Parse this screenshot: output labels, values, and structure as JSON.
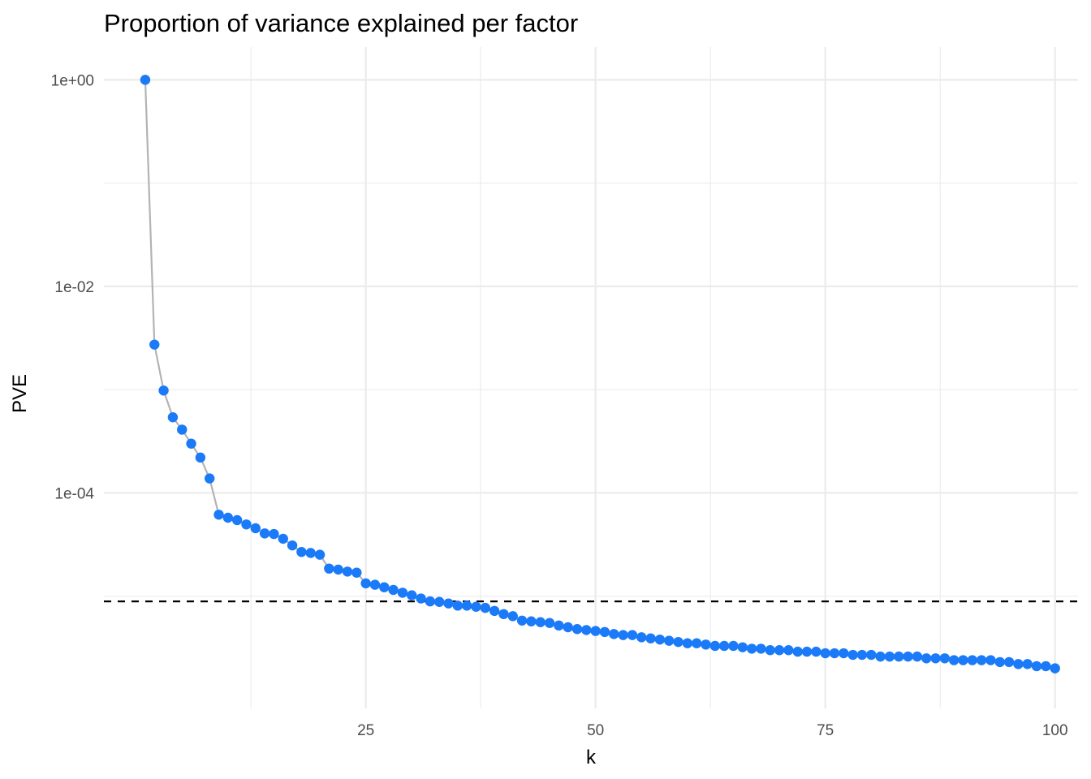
{
  "chart_data": {
    "type": "scatter",
    "title": "Proportion of variance explained per factor",
    "xlabel": "k",
    "ylabel": "PVE",
    "x_ticks": [
      25,
      50,
      75,
      100
    ],
    "x_tick_labels": [
      "25",
      "50",
      "75",
      "100"
    ],
    "y_ticks": [
      1,
      0.01,
      0.0001
    ],
    "y_tick_labels": [
      "1e+00",
      "1e-02",
      "1e-04"
    ],
    "y_scale": "log10",
    "xlim": [
      -3.5,
      102.5
    ],
    "ylim": [
      1.7e-06,
      1
    ],
    "grid": true,
    "legend": "none",
    "point_color": "#1a7af8",
    "line_color": "#b3b3b3",
    "hline": {
      "y": 8.9e-06,
      "style": "dashed",
      "color": "#000000"
    },
    "series": [
      {
        "x": [
          1,
          2,
          3,
          4,
          5,
          6,
          7,
          8,
          9,
          10,
          11,
          12,
          13,
          14,
          15,
          16,
          17,
          18,
          19,
          20,
          21,
          22,
          23,
          24,
          25,
          26,
          27,
          28,
          29,
          30,
          31,
          32,
          33,
          34,
          35,
          36,
          37,
          38,
          39,
          40,
          41,
          42,
          43,
          44,
          45,
          46,
          47,
          48,
          49,
          50,
          51,
          52,
          53,
          54,
          55,
          56,
          57,
          58,
          59,
          60,
          61,
          62,
          63,
          64,
          65,
          66,
          67,
          68,
          69,
          70,
          71,
          72,
          73,
          74,
          75,
          76,
          77,
          78,
          79,
          80,
          81,
          82,
          83,
          84,
          85,
          86,
          87,
          88,
          89,
          90,
          91,
          92,
          93,
          94,
          95,
          96,
          97,
          98,
          99,
          100
        ],
        "values": [
          1.0,
          0.00273,
          0.00098,
          0.00054,
          0.00041,
          0.0003,
          0.00022,
          0.000138,
          6.15e-05,
          5.75e-05,
          5.45e-05,
          4.95e-05,
          4.55e-05,
          4.05e-05,
          4e-05,
          3.6e-05,
          3.1e-05,
          2.68e-05,
          2.62e-05,
          2.52e-05,
          1.85e-05,
          1.81e-05,
          1.73e-05,
          1.69e-05,
          1.33e-05,
          1.29e-05,
          1.22e-05,
          1.15e-05,
          1.08e-05,
          1.02e-05,
          9.5e-06,
          8.9e-06,
          8.8e-06,
          8.5e-06,
          8.1e-06,
          8.1e-06,
          7.9e-06,
          7.7e-06,
          7.2e-06,
          6.7e-06,
          6.4e-06,
          5.8e-06,
          5.7e-06,
          5.6e-06,
          5.5e-06,
          5.2e-06,
          5e-06,
          4.8e-06,
          4.7e-06,
          4.6e-06,
          4.5e-06,
          4.3e-06,
          4.2e-06,
          4.2e-06,
          4e-06,
          3.9e-06,
          3.8e-06,
          3.7e-06,
          3.6e-06,
          3.5e-06,
          3.5e-06,
          3.4e-06,
          3.3e-06,
          3.3e-06,
          3.3e-06,
          3.2e-06,
          3.1e-06,
          3.1e-06,
          3e-06,
          3e-06,
          3e-06,
          2.9e-06,
          2.9e-06,
          2.9e-06,
          2.8e-06,
          2.8e-06,
          2.8e-06,
          2.7e-06,
          2.7e-06,
          2.7e-06,
          2.6e-06,
          2.6e-06,
          2.6e-06,
          2.6e-06,
          2.6e-06,
          2.5e-06,
          2.5e-06,
          2.5e-06,
          2.4e-06,
          2.4e-06,
          2.4e-06,
          2.4e-06,
          2.4e-06,
          2.3e-06,
          2.3e-06,
          2.2e-06,
          2.2e-06,
          2.1e-06,
          2.1e-06,
          2e-06
        ]
      }
    ]
  }
}
